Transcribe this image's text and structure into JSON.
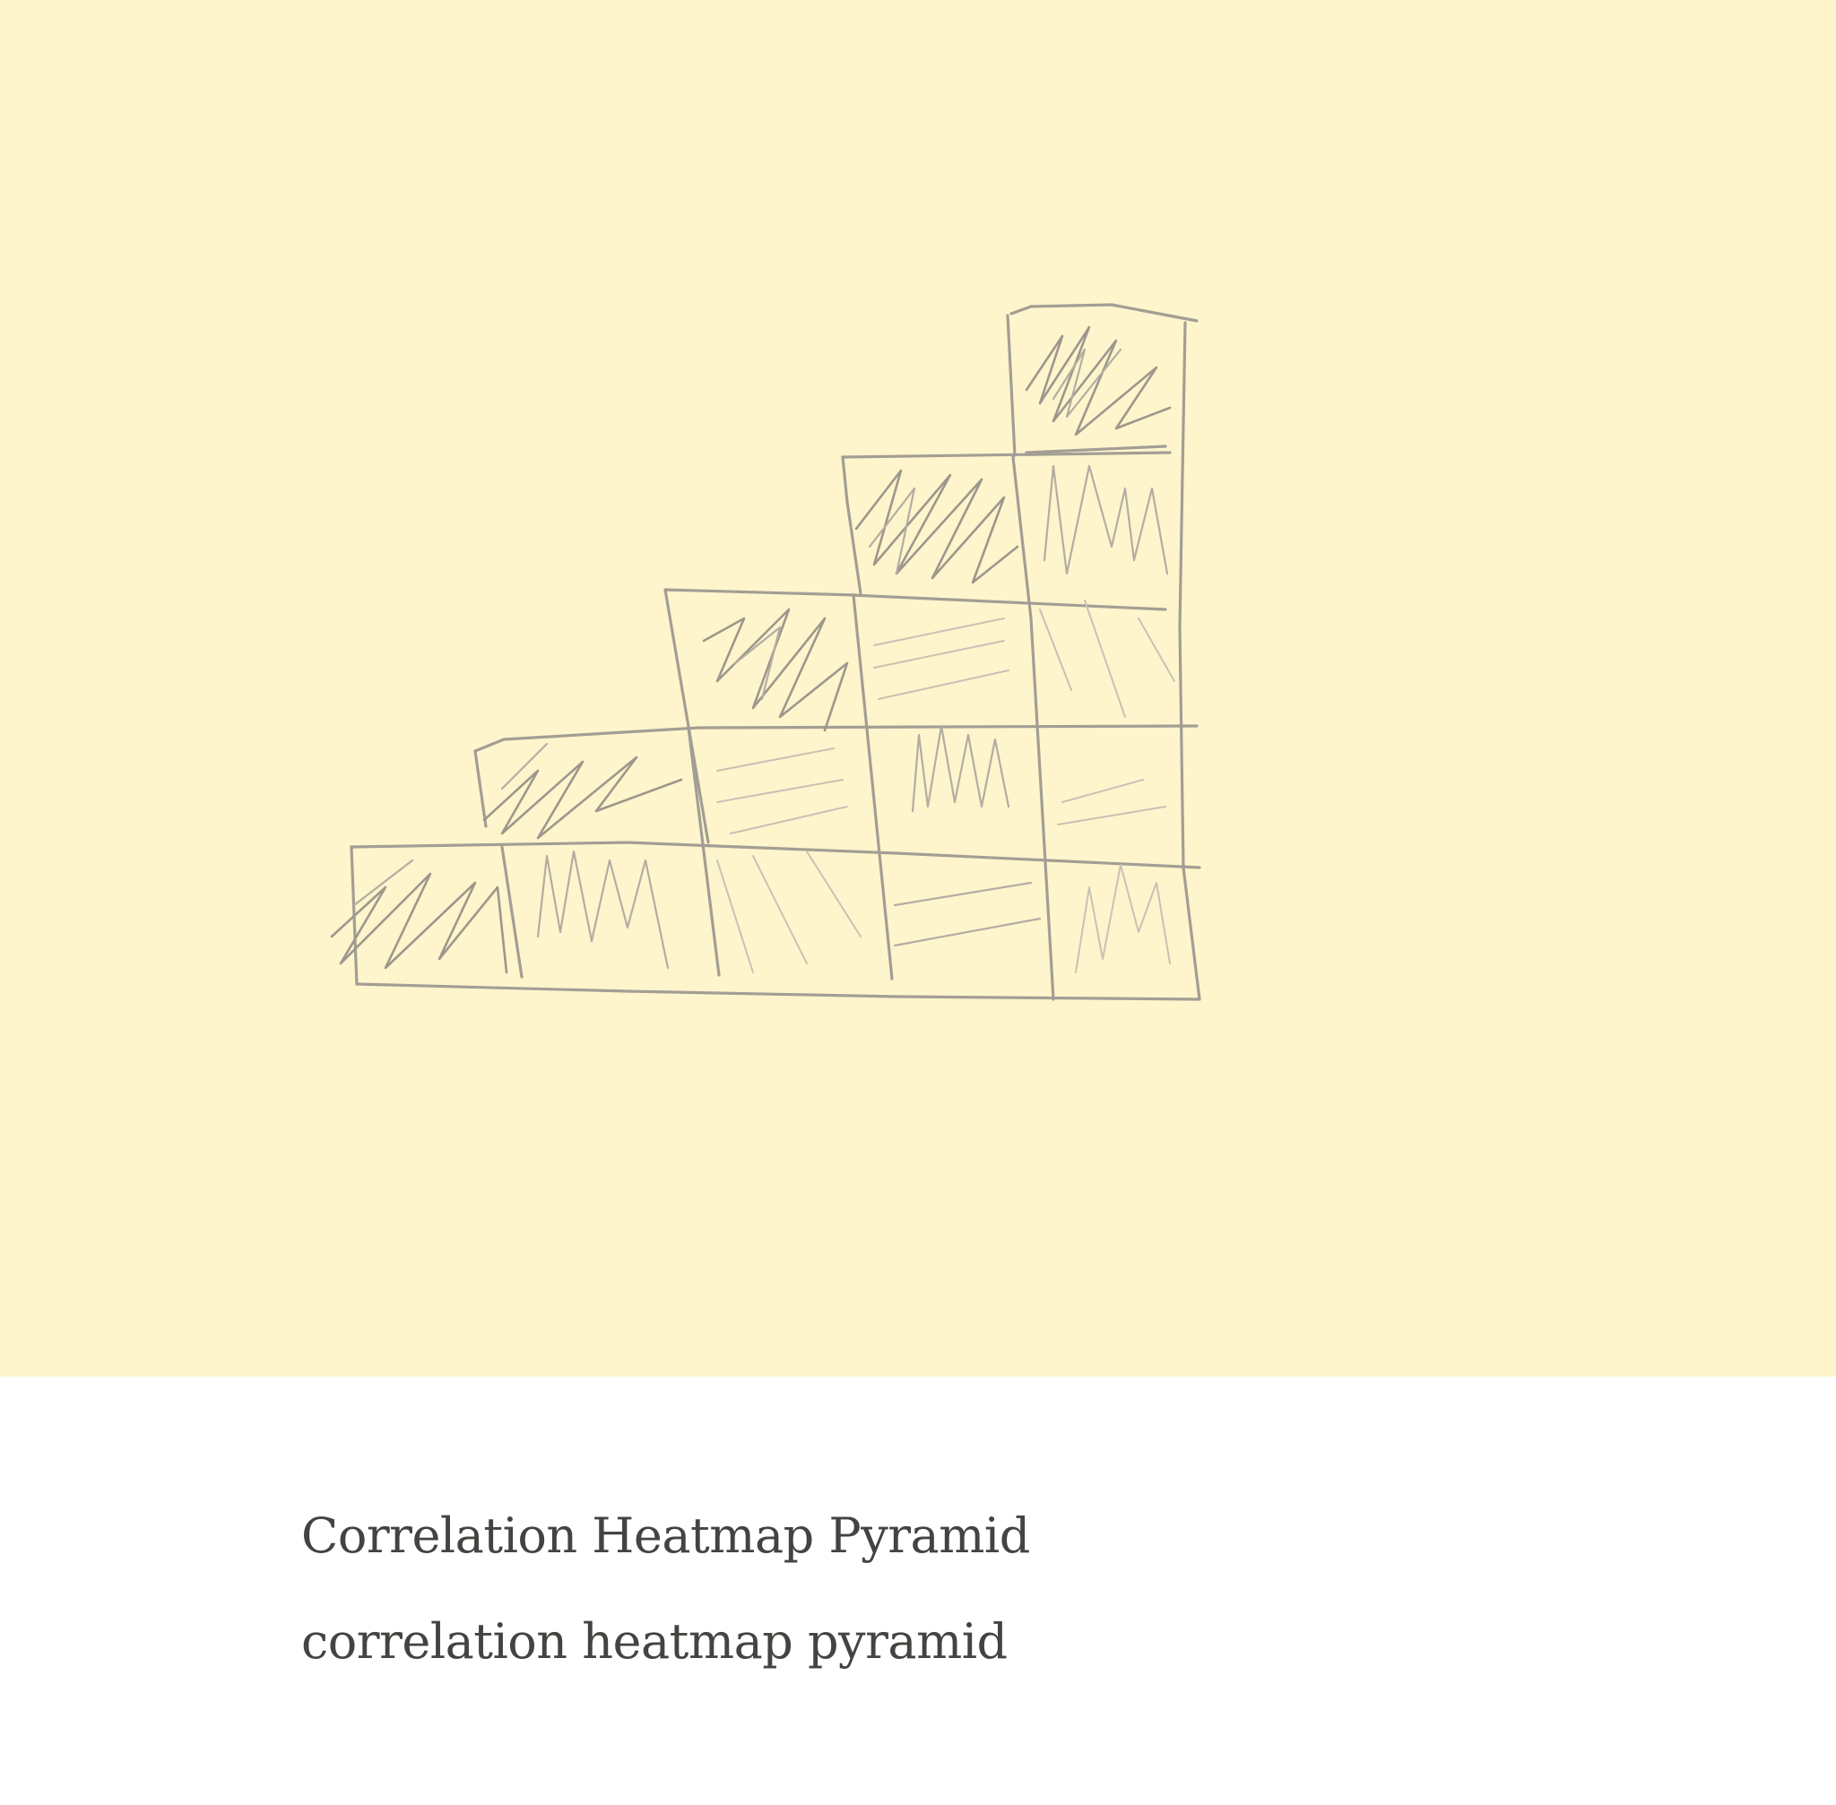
{
  "caption": {
    "title": "Correlation Heatmap Pyramid",
    "subtitle": "correlation heatmap pyramid"
  },
  "colors": {
    "canvas_background": "#fff5cc",
    "page_background": "#ffffff",
    "pencil_stroke": "#a39e94",
    "caption_text": "#454340"
  },
  "drawing": {
    "style": "pencil sketch",
    "subject": "staircase grid of hatched cells",
    "columns": 5,
    "rows_per_column": [
      1,
      2,
      3,
      4,
      5
    ]
  }
}
